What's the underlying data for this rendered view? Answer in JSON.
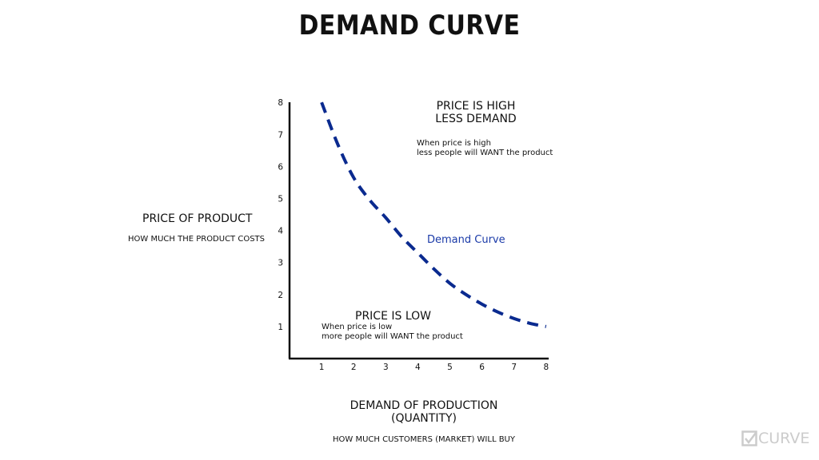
{
  "title": "DEMAND CURVE",
  "y_axis": {
    "heading": "PRICE OF PRODUCT",
    "subheading": "HOW MUCH THE PRODUCT COSTS"
  },
  "x_axis": {
    "heading_line1": "DEMAND OF PRODUCTION",
    "heading_line2": "(QUANTITY)",
    "subheading": "HOW MUCH CUSTOMERS (MARKET) WILL BUY"
  },
  "annotations": {
    "high_heading_line1": "PRICE IS HIGH",
    "high_heading_line2": "LESS DEMAND",
    "high_text_line1": "When price is high",
    "high_text_line2": "less people will WANT the product",
    "low_heading": "PRICE IS LOW",
    "low_text_line1": "When price is low",
    "low_text_line2": "more people will WANT the product",
    "curve_label": "Demand Curve"
  },
  "logo": "CURVE",
  "colors": {
    "curve": "#0a2a8f",
    "label": "#1a3aa8",
    "logo": "#cccccc"
  },
  "chart_data": {
    "type": "line",
    "title": "DEMAND CURVE",
    "xlabel": "DEMAND OF PRODUCTION (QUANTITY)",
    "ylabel": "PRICE OF PRODUCT",
    "xlim": [
      0,
      8
    ],
    "ylim": [
      0,
      8
    ],
    "xticks": [
      "1",
      "2",
      "3",
      "4",
      "5",
      "6",
      "7",
      "8"
    ],
    "yticks": [
      "1",
      "2",
      "3",
      "4",
      "5",
      "6",
      "7",
      "8"
    ],
    "grid": false,
    "series": [
      {
        "name": "Demand Curve",
        "style": "dashed",
        "x": [
          1,
          1.5,
          2,
          2.5,
          3,
          3.5,
          4,
          4.5,
          5,
          5.5,
          6,
          6.5,
          7,
          7.5,
          8
        ],
        "y": [
          8,
          6.7,
          5.65,
          4.95,
          4.4,
          3.8,
          3.3,
          2.8,
          2.35,
          2.0,
          1.7,
          1.45,
          1.25,
          1.1,
          1.0
        ]
      }
    ]
  }
}
